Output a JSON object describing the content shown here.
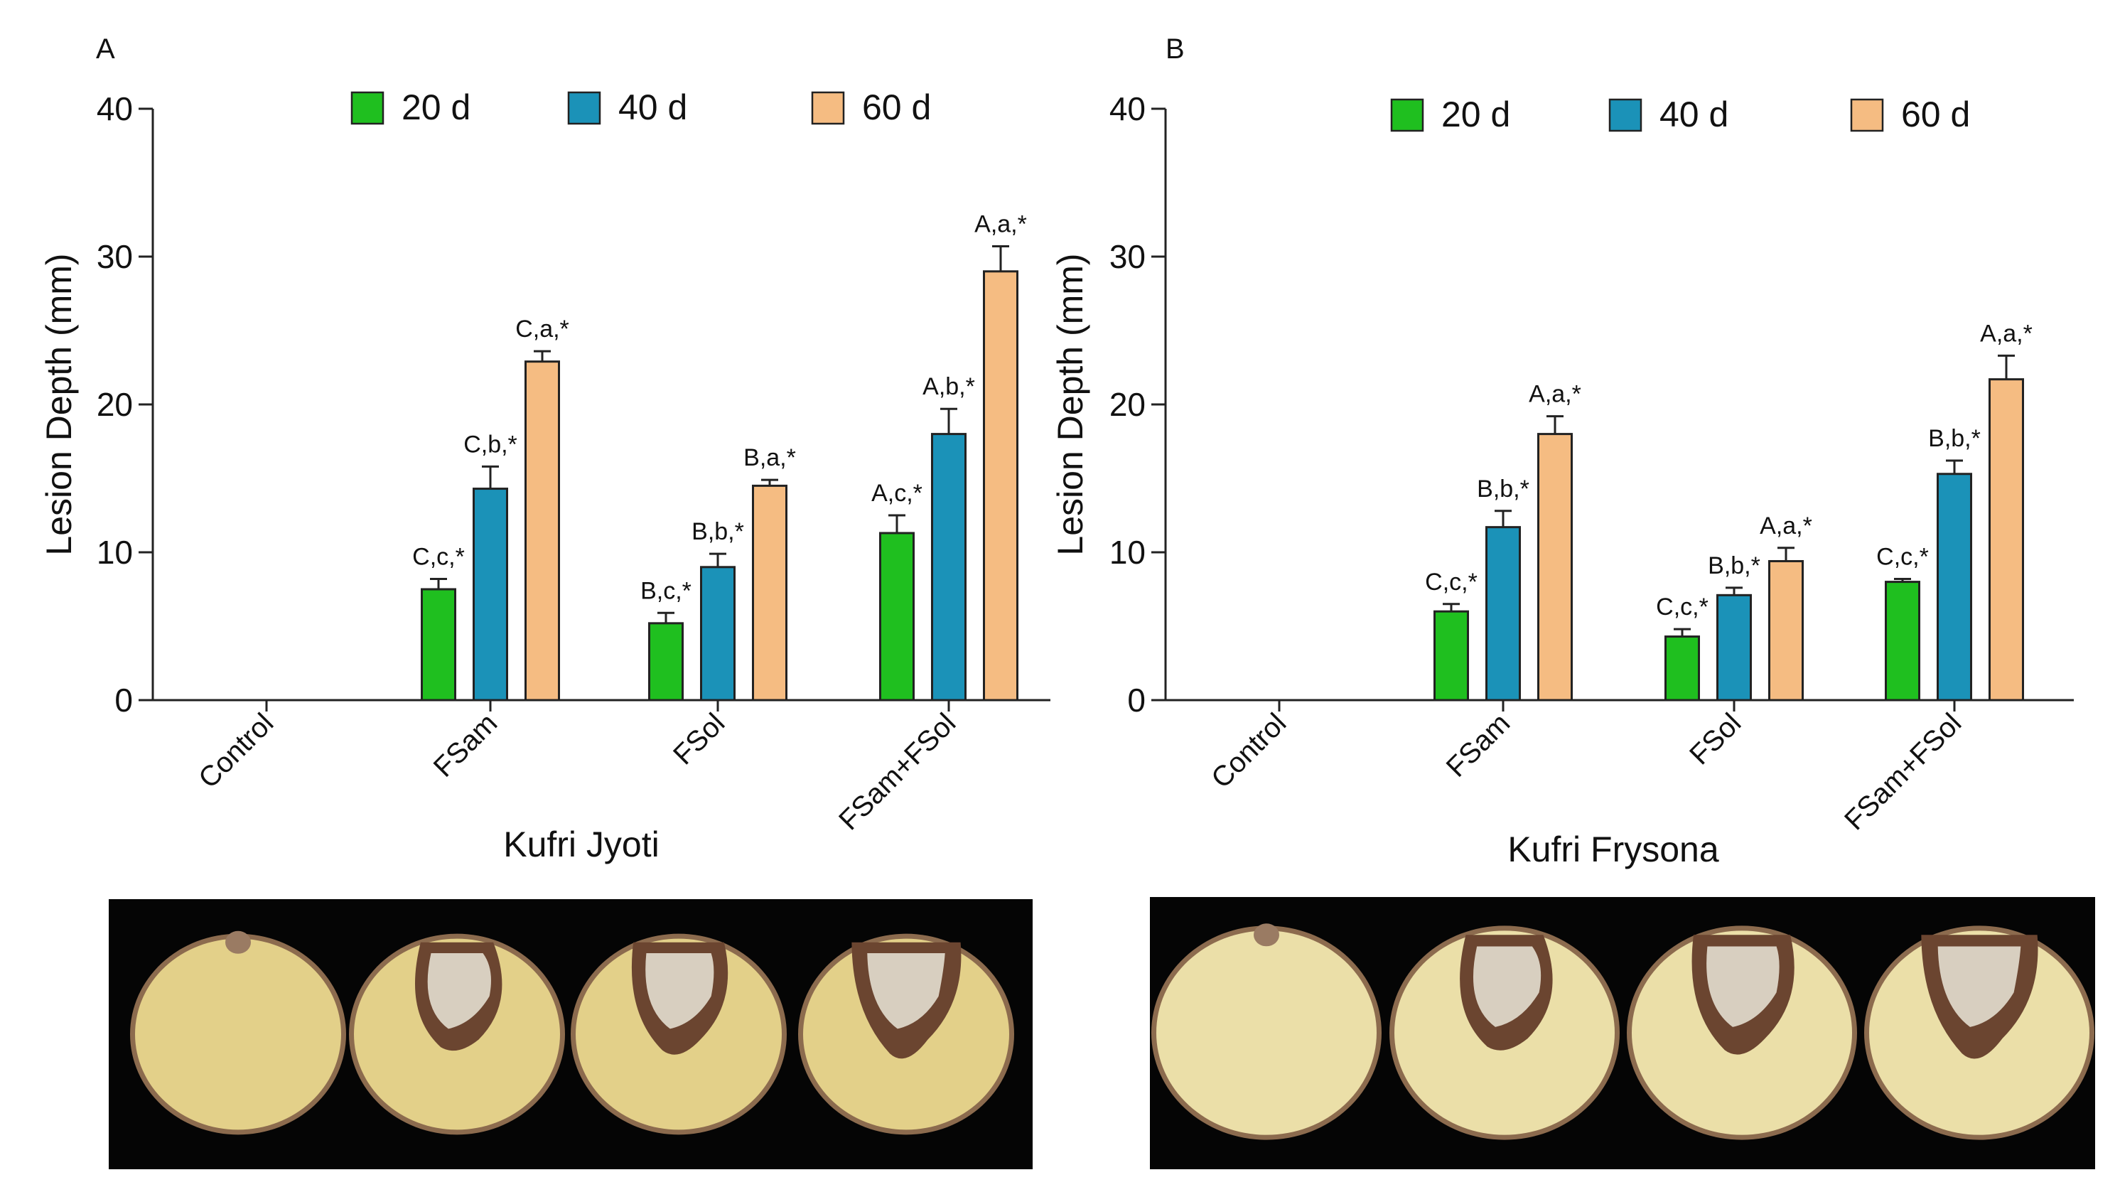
{
  "chart_data": [
    {
      "panel": "A",
      "type": "bar",
      "title": "Kufri Jyoti",
      "xlabel": "Kufri Jyoti",
      "ylabel": "Lesion Depth (mm)",
      "ylim": [
        0,
        40
      ],
      "yticks": [
        0,
        10,
        20,
        30,
        40
      ],
      "categories": [
        "Control",
        "FSam",
        "FSol",
        "FSam+FSol"
      ],
      "series": [
        {
          "name": "20 d",
          "color": "#1fbf1f",
          "values": [
            0,
            7.5,
            5.2,
            11.3
          ],
          "errors": [
            0,
            0.7,
            0.7,
            1.2
          ],
          "labels": [
            "",
            "C,c,*",
            "B,c,*",
            "A,c,*"
          ]
        },
        {
          "name": "40 d",
          "color": "#1b92b8",
          "values": [
            0,
            14.3,
            9.0,
            18.0
          ],
          "errors": [
            0,
            1.5,
            0.9,
            1.7
          ],
          "labels": [
            "",
            "C,b,*",
            "B,b,*",
            "A,b,*"
          ]
        },
        {
          "name": "60 d",
          "color": "#f5bc82",
          "values": [
            0,
            22.9,
            14.5,
            29.0
          ],
          "errors": [
            0,
            0.7,
            0.4,
            1.7
          ],
          "labels": [
            "",
            "C,a,*",
            "B,a,*",
            "A,a,*"
          ]
        }
      ]
    },
    {
      "panel": "B",
      "type": "bar",
      "title": "Kufri Frysona",
      "xlabel": "Kufri Frysona",
      "ylabel": "Lesion Depth (mm)",
      "ylim": [
        0,
        40
      ],
      "yticks": [
        0,
        10,
        20,
        30,
        40
      ],
      "categories": [
        "Control",
        "FSam",
        "FSol",
        "FSam+FSol"
      ],
      "series": [
        {
          "name": "20 d",
          "color": "#1fbf1f",
          "values": [
            0,
            6.0,
            4.3,
            8.0
          ],
          "errors": [
            0,
            0.5,
            0.5,
            0.2
          ],
          "labels": [
            "",
            "C,c,*",
            "C,c,*",
            "C,c,*"
          ]
        },
        {
          "name": "40 d",
          "color": "#1b92b8",
          "values": [
            0,
            11.7,
            7.1,
            15.3
          ],
          "errors": [
            0,
            1.1,
            0.5,
            0.9
          ],
          "labels": [
            "",
            "B,b,*",
            "B,b,*",
            "B,b,*"
          ]
        },
        {
          "name": "60 d",
          "color": "#f5bc82",
          "values": [
            0,
            18.0,
            9.4,
            21.7
          ],
          "errors": [
            0,
            1.2,
            0.9,
            1.6
          ],
          "labels": [
            "",
            "A,a,*",
            "A,a,*",
            "A,a,*"
          ]
        }
      ]
    }
  ],
  "photos": [
    {
      "panel": "A",
      "items": [
        "Control",
        "FSam",
        "FSol",
        "FSam+FSol"
      ]
    },
    {
      "panel": "B",
      "items": [
        "Control",
        "FSam",
        "FSol",
        "FSam+FSol"
      ]
    }
  ]
}
